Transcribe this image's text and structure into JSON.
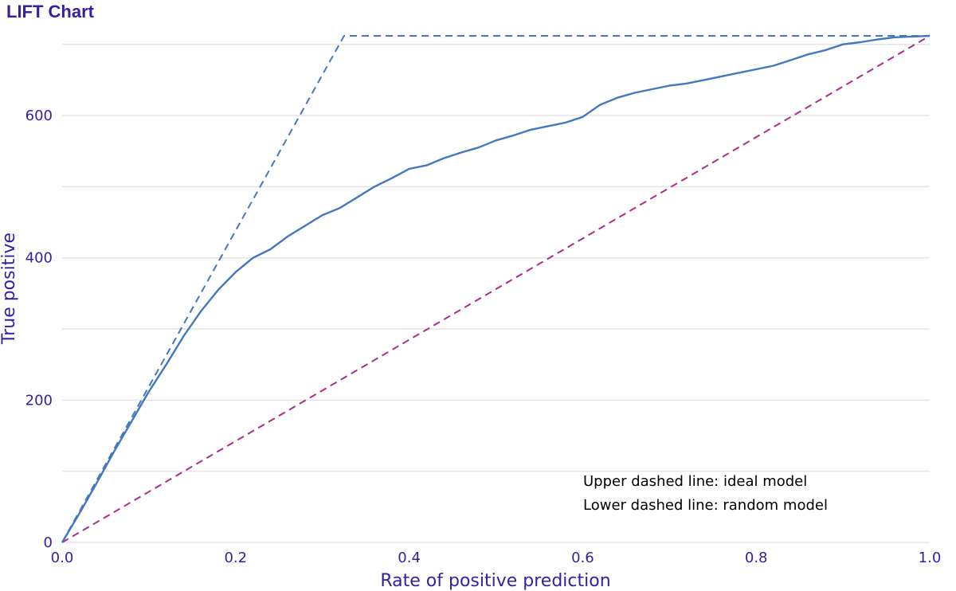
{
  "chart_data": {
    "type": "line",
    "title": "LIFT Chart",
    "xlabel": "Rate of positive prediction",
    "ylabel": "True positive",
    "xlim": [
      0,
      1
    ],
    "ylim": [
      0,
      712
    ],
    "x_ticks": [
      "0.0",
      "0.2",
      "0.4",
      "0.6",
      "0.8",
      "1.0"
    ],
    "y_ticks": [
      "0",
      "200",
      "400",
      "600"
    ],
    "y_grid": [
      0,
      100,
      200,
      300,
      400,
      500,
      600,
      700
    ],
    "grid": true,
    "annotations": [
      "Upper dashed line: ideal model",
      "Lower dashed line: random model"
    ],
    "colors": {
      "model": "#4378bf",
      "ideal": "#4378bf",
      "random": "#ae2c87",
      "text": "#371ea3",
      "grid": "#e4e4e4"
    },
    "series": [
      {
        "name": "model",
        "style": "solid",
        "x": [
          0,
          0.02,
          0.04,
          0.06,
          0.08,
          0.1,
          0.12,
          0.14,
          0.16,
          0.18,
          0.2,
          0.22,
          0.24,
          0.26,
          0.28,
          0.3,
          0.32,
          0.34,
          0.36,
          0.38,
          0.4,
          0.42,
          0.44,
          0.46,
          0.48,
          0.5,
          0.52,
          0.54,
          0.56,
          0.58,
          0.6,
          0.62,
          0.64,
          0.66,
          0.68,
          0.7,
          0.72,
          0.74,
          0.76,
          0.78,
          0.8,
          0.82,
          0.84,
          0.86,
          0.88,
          0.9,
          0.92,
          0.94,
          0.96,
          0.98,
          1.0
        ],
        "values": [
          0,
          41,
          84,
          128,
          170,
          212,
          250,
          290,
          325,
          355,
          380,
          400,
          412,
          430,
          445,
          460,
          470,
          485,
          500,
          512,
          525,
          530,
          540,
          548,
          555,
          565,
          572,
          580,
          585,
          590,
          598,
          615,
          625,
          632,
          637,
          642,
          645,
          650,
          655,
          660,
          665,
          670,
          678,
          686,
          692,
          700,
          703,
          707,
          710,
          711,
          712
        ]
      },
      {
        "name": "ideal",
        "style": "dashed",
        "x": [
          0,
          0.325,
          1.0
        ],
        "values": [
          0,
          712,
          712
        ]
      },
      {
        "name": "random",
        "style": "dashed",
        "x": [
          0,
          1.0
        ],
        "values": [
          0,
          712
        ]
      }
    ]
  }
}
